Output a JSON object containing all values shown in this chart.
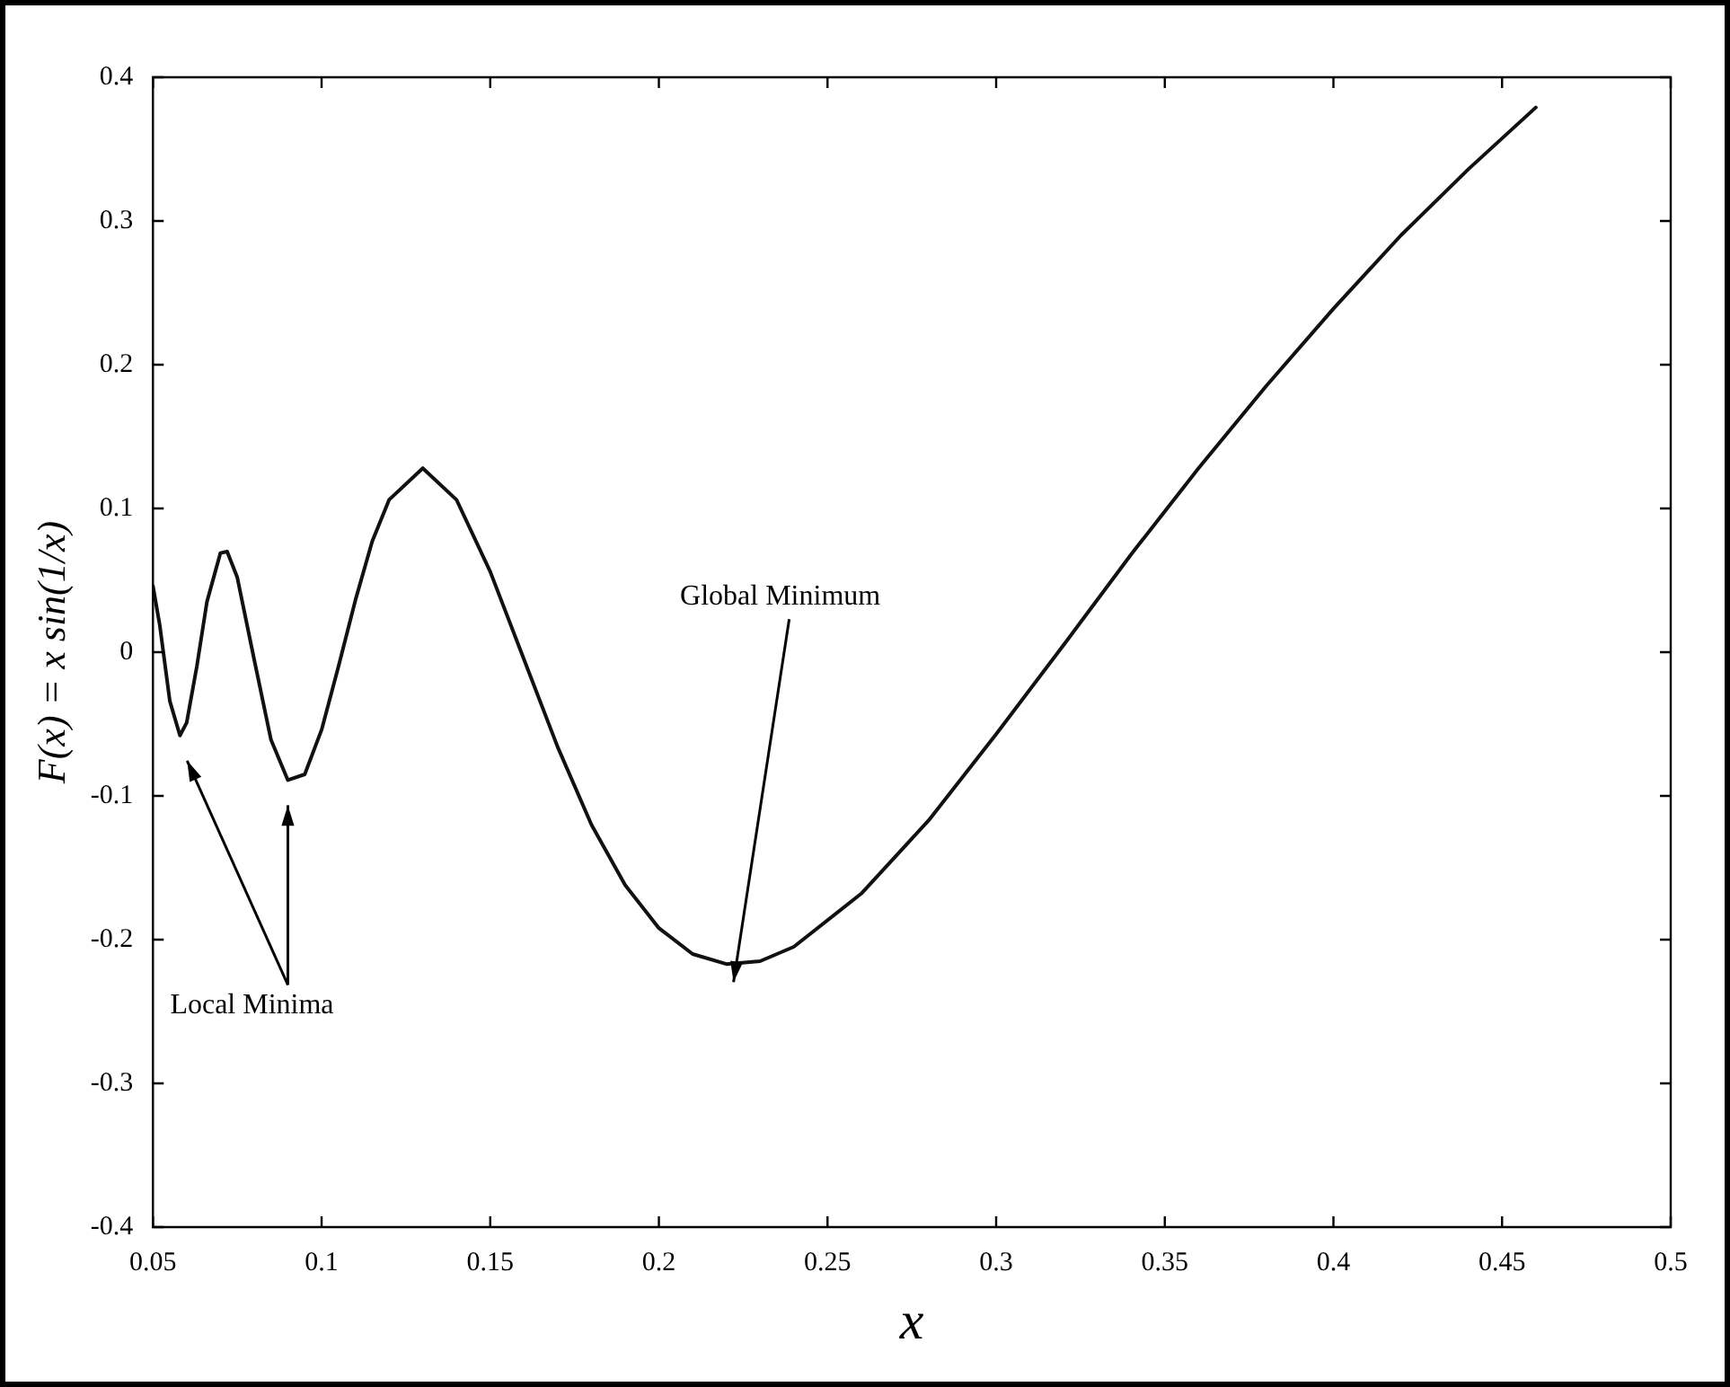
{
  "chart_data": {
    "type": "line",
    "xlabel": "x",
    "ylabel": "F(x) = x sin(1/x)",
    "xlim": [
      0.05,
      0.5
    ],
    "ylim": [
      -0.4,
      0.4
    ],
    "xticks": [
      0.05,
      0.1,
      0.15,
      0.2,
      0.25,
      0.3,
      0.35,
      0.4,
      0.45,
      0.5
    ],
    "yticks": [
      -0.4,
      -0.3,
      -0.2,
      -0.1,
      0,
      0.1,
      0.2,
      0.3,
      0.4
    ],
    "grid": false,
    "legend": false,
    "marker": "none",
    "line_style": "solid",
    "series": [
      {
        "color": "#111111",
        "x": [
          0.05,
          0.052,
          0.055,
          0.058,
          0.06,
          0.063,
          0.066,
          0.07,
          0.072,
          0.075,
          0.08,
          0.085,
          0.09,
          0.095,
          0.1,
          0.105,
          0.11,
          0.115,
          0.12,
          0.13,
          0.14,
          0.15,
          0.16,
          0.17,
          0.18,
          0.19,
          0.2,
          0.21,
          0.22,
          0.23,
          0.24,
          0.26,
          0.28,
          0.3,
          0.32,
          0.34,
          0.36,
          0.38,
          0.4,
          0.42,
          0.44,
          0.46
        ],
        "values": [
          0.046,
          0.019,
          -0.034,
          -0.058,
          -0.049,
          -0.01,
          0.035,
          0.069,
          0.07,
          0.052,
          -0.005,
          -0.061,
          -0.089,
          -0.085,
          -0.054,
          -0.01,
          0.036,
          0.077,
          0.106,
          0.128,
          0.106,
          0.056,
          -0.005,
          -0.066,
          -0.12,
          -0.162,
          -0.192,
          -0.21,
          -0.217,
          -0.215,
          -0.205,
          -0.168,
          -0.117,
          -0.057,
          0.005,
          0.068,
          0.128,
          0.185,
          0.239,
          0.29,
          0.336,
          0.379
        ]
      }
    ],
    "annotations": [
      "Global Minimum",
      "Local Minima"
    ]
  }
}
